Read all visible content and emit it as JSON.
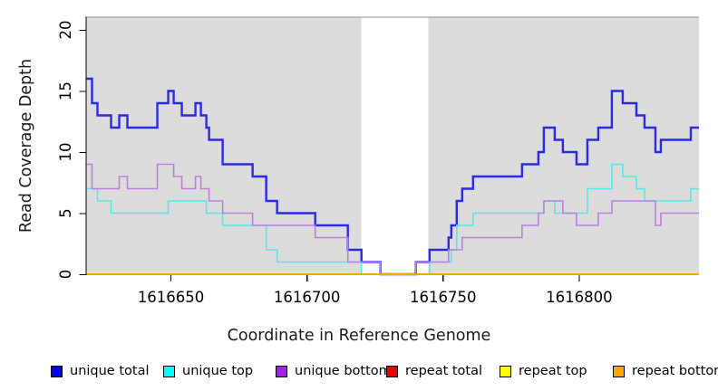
{
  "figure": {
    "xlabel": "Coordinate in Reference Genome",
    "ylabel": "Read Coverage Depth",
    "background": "#FFFFFF",
    "plot_background": "#DCDCDC",
    "gap_band_color": "#FFFFFF"
  },
  "legend": {
    "items": [
      {
        "label": "unique total",
        "color": "#0000EE"
      },
      {
        "label": "unique top",
        "color": "#00FFFF"
      },
      {
        "label": "unique bottom",
        "color": "#A020F0"
      },
      {
        "label": "repeat total",
        "color": "#EE0000"
      },
      {
        "label": "repeat top",
        "color": "#FFFF00"
      },
      {
        "label": "repeat bottom",
        "color": "#FFA500"
      }
    ]
  },
  "chart_data": {
    "type": "line",
    "subtype": "step",
    "title": "",
    "xlabel": "Coordinate in Reference Genome",
    "ylabel": "Read Coverage Depth",
    "xlim": [
      1616619,
      1616844
    ],
    "ylim": [
      0,
      21
    ],
    "x_end": 1616844,
    "x_ticks": [
      1616650,
      1616700,
      1616750,
      1616800
    ],
    "y_ticks": [
      0,
      5,
      10,
      15,
      20
    ],
    "grid": false,
    "legend_position": "bottom",
    "uncovered_region": [
      1616720,
      1616744.5
    ],
    "series": [
      {
        "name": "unique total",
        "color": "#2A2ADF",
        "line_width": 2.4,
        "steps": [
          [
            1616619,
            16
          ],
          [
            1616621,
            14
          ],
          [
            1616623,
            13
          ],
          [
            1616628,
            12
          ],
          [
            1616631,
            13
          ],
          [
            1616634,
            12
          ],
          [
            1616645,
            14
          ],
          [
            1616649,
            15
          ],
          [
            1616651,
            14
          ],
          [
            1616654,
            13
          ],
          [
            1616659,
            14
          ],
          [
            1616661,
            13
          ],
          [
            1616663,
            12
          ],
          [
            1616664,
            11
          ],
          [
            1616669,
            9
          ],
          [
            1616680,
            8
          ],
          [
            1616685,
            6
          ],
          [
            1616689,
            5
          ],
          [
            1616703,
            4
          ],
          [
            1616715,
            2
          ],
          [
            1616720,
            1
          ],
          [
            1616727,
            0
          ],
          [
            1616740,
            1
          ],
          [
            1616745,
            2
          ],
          [
            1616752,
            3
          ],
          [
            1616753,
            4
          ],
          [
            1616755,
            6
          ],
          [
            1616757,
            7
          ],
          [
            1616761,
            8
          ],
          [
            1616779,
            9
          ],
          [
            1616785,
            10
          ],
          [
            1616787,
            12
          ],
          [
            1616791,
            11
          ],
          [
            1616794,
            10
          ],
          [
            1616799,
            9
          ],
          [
            1616803,
            11
          ],
          [
            1616807,
            12
          ],
          [
            1616812,
            15
          ],
          [
            1616816,
            14
          ],
          [
            1616821,
            13
          ],
          [
            1616824,
            12
          ],
          [
            1616828,
            10
          ],
          [
            1616830,
            11
          ],
          [
            1616841,
            12
          ]
        ]
      },
      {
        "name": "unique top",
        "color": "#58E8E8",
        "line_width": 1.6,
        "steps": [
          [
            1616619,
            7
          ],
          [
            1616623,
            6
          ],
          [
            1616628,
            5
          ],
          [
            1616649,
            6
          ],
          [
            1616663,
            5
          ],
          [
            1616669,
            4
          ],
          [
            1616685,
            2
          ],
          [
            1616689,
            1
          ],
          [
            1616720,
            0
          ],
          [
            1616745,
            1
          ],
          [
            1616753,
            2
          ],
          [
            1616755,
            4
          ],
          [
            1616761,
            5
          ],
          [
            1616787,
            6
          ],
          [
            1616791,
            5
          ],
          [
            1616803,
            7
          ],
          [
            1616812,
            9
          ],
          [
            1616816,
            8
          ],
          [
            1616821,
            7
          ],
          [
            1616824,
            6
          ],
          [
            1616841,
            7
          ]
        ]
      },
      {
        "name": "unique bottom",
        "color": "#BA80DC",
        "line_width": 1.6,
        "steps": [
          [
            1616619,
            9
          ],
          [
            1616621,
            7
          ],
          [
            1616631,
            8
          ],
          [
            1616634,
            7
          ],
          [
            1616645,
            9
          ],
          [
            1616651,
            8
          ],
          [
            1616654,
            7
          ],
          [
            1616659,
            8
          ],
          [
            1616661,
            7
          ],
          [
            1616664,
            6
          ],
          [
            1616669,
            5
          ],
          [
            1616680,
            4
          ],
          [
            1616703,
            3
          ],
          [
            1616715,
            1
          ],
          [
            1616727,
            0
          ],
          [
            1616740,
            1
          ],
          [
            1616752,
            2
          ],
          [
            1616757,
            3
          ],
          [
            1616779,
            4
          ],
          [
            1616785,
            5
          ],
          [
            1616787,
            6
          ],
          [
            1616794,
            5
          ],
          [
            1616799,
            4
          ],
          [
            1616807,
            5
          ],
          [
            1616812,
            6
          ],
          [
            1616828,
            4
          ],
          [
            1616830,
            5
          ]
        ]
      },
      {
        "name": "repeat total",
        "color": "#EE0000",
        "line_width": 1.6,
        "steps": [
          [
            1616619,
            0
          ]
        ]
      },
      {
        "name": "repeat top",
        "color": "#FFFF00",
        "line_width": 1.6,
        "steps": [
          [
            1616619,
            0
          ]
        ]
      },
      {
        "name": "repeat bottom",
        "color": "#FFA500",
        "line_width": 2,
        "steps": [
          [
            1616619,
            0
          ]
        ]
      }
    ]
  }
}
